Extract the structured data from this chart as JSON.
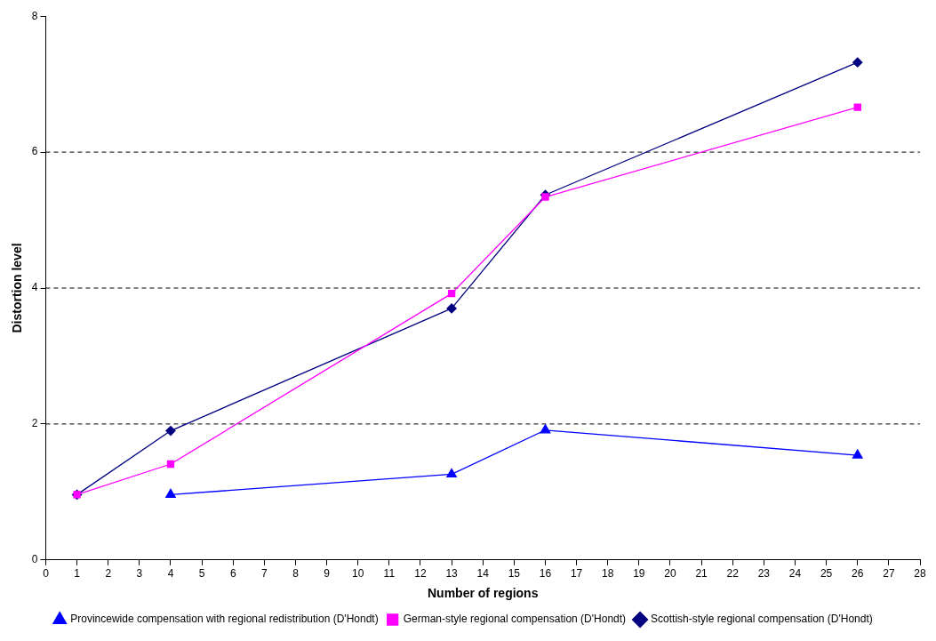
{
  "chart_data": {
    "type": "line",
    "xlabel": "Number of regions",
    "ylabel": "Distortion level",
    "xlim": [
      0,
      28
    ],
    "xticks": [
      0,
      1,
      2,
      3,
      4,
      5,
      6,
      7,
      8,
      9,
      10,
      11,
      12,
      13,
      14,
      15,
      16,
      17,
      18,
      19,
      20,
      21,
      22,
      23,
      24,
      25,
      26,
      27,
      28
    ],
    "ylim": [
      0,
      8
    ],
    "yticks": [
      0,
      2,
      4,
      6,
      8
    ],
    "grid": "y",
    "legend": "bottom",
    "series": [
      {
        "name": "Scottish-style regional compensation (D'Hondt)",
        "color": "#000080",
        "marker": "diamond",
        "x": [
          1,
          4,
          13,
          16,
          26
        ],
        "values": [
          0.96,
          1.9,
          3.7,
          5.37,
          7.32
        ]
      },
      {
        "name": "German-style regional compensation (D'Hondt)",
        "color": "#ff00ff",
        "marker": "square",
        "x": [
          1,
          4,
          13,
          16,
          26
        ],
        "values": [
          0.96,
          1.41,
          3.92,
          5.34,
          6.66
        ]
      },
      {
        "name": "Provincewide compensation with regional redistribution (D'Hondt)",
        "color": "#0000ff",
        "marker": "triangle",
        "x": [
          4,
          13,
          16,
          26
        ],
        "values": [
          0.96,
          1.26,
          1.91,
          1.54
        ]
      }
    ]
  }
}
